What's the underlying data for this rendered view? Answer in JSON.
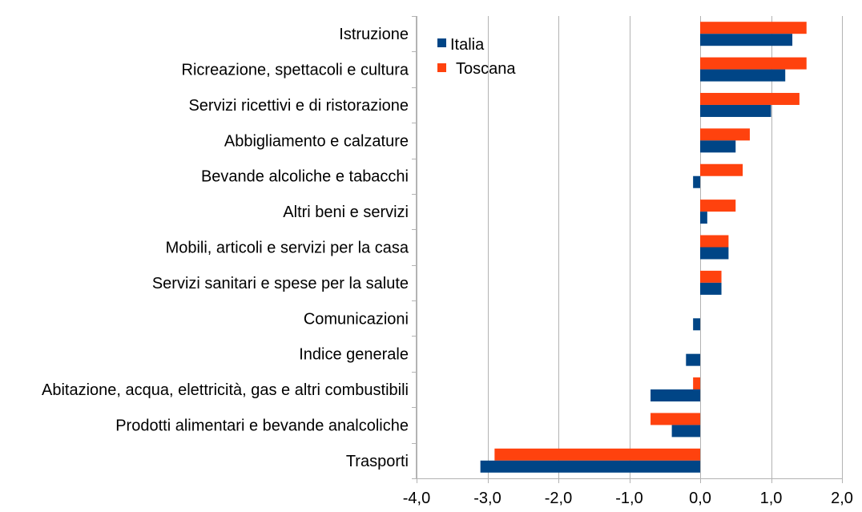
{
  "chart_data": {
    "type": "bar",
    "orientation": "horizontal",
    "categories": [
      "Istruzione",
      "Ricreazione, spettacoli e cultura",
      "Servizi ricettivi e di ristorazione",
      "Abbigliamento e calzature",
      "Bevande alcoliche e tabacchi",
      "Altri beni e servizi",
      "Mobili, articoli e servizi per la casa",
      "Servizi sanitari e spese per la salute",
      "Comunicazioni",
      "Indice generale",
      "Abitazione, acqua, elettricità, gas e altri combustibili",
      "Prodotti alimentari e bevande analcoliche",
      "Trasporti"
    ],
    "series": [
      {
        "name": "Italia",
        "color": "#004586",
        "values": [
          1.3,
          1.2,
          1.0,
          0.5,
          -0.1,
          0.1,
          0.4,
          0.3,
          -0.1,
          -0.2,
          -0.7,
          -0.4,
          -3.1
        ]
      },
      {
        "name": "Toscana",
        "color": "#ff420e",
        "values": [
          1.5,
          1.5,
          1.4,
          0.7,
          0.6,
          0.5,
          0.4,
          0.3,
          0.0,
          0.0,
          -0.1,
          -0.7,
          -2.9
        ]
      }
    ],
    "xlim": [
      -4.0,
      2.0
    ],
    "ticks": [
      "-4,0",
      "-3,0",
      "-2,0",
      "-1,0",
      "0,0",
      "1,0",
      "2,0"
    ],
    "tick_values": [
      -4,
      -3,
      -2,
      -1,
      0,
      1,
      2
    ],
    "grid": "vertical",
    "legend": "top-left",
    "title": "",
    "xlabel": "",
    "ylabel": ""
  }
}
